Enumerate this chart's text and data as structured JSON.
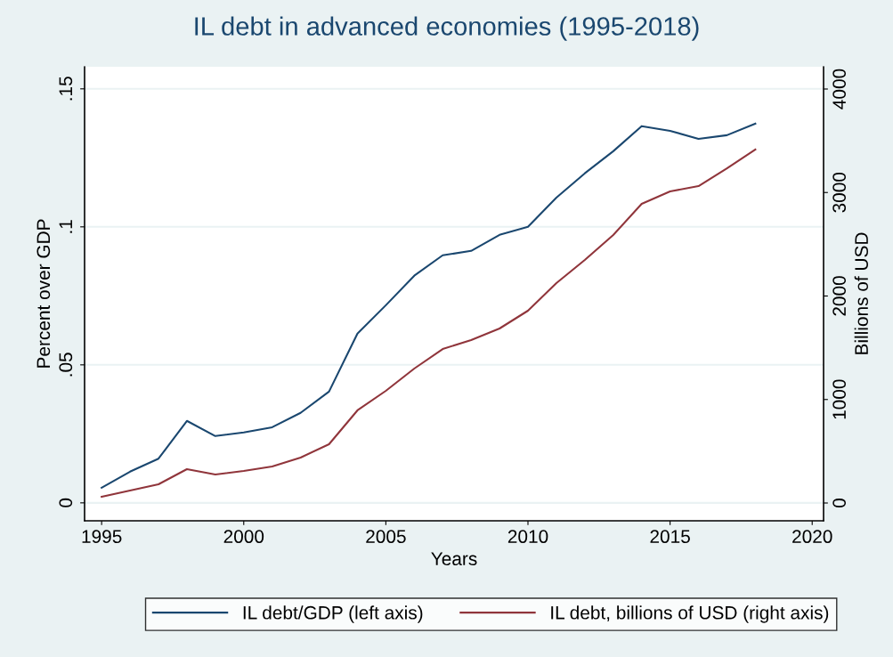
{
  "chart_data": {
    "type": "line",
    "title": "IL debt in advanced economies (1995-2018)",
    "xlabel": "Years",
    "ylabel": "Percent over GDP",
    "y2label": "Billions of USD",
    "x": [
      1995,
      1996,
      1997,
      1998,
      1999,
      2000,
      2001,
      2002,
      2003,
      2004,
      2005,
      2006,
      2007,
      2008,
      2009,
      2010,
      2011,
      2012,
      2013,
      2014,
      2015,
      2016,
      2017,
      2018
    ],
    "series": [
      {
        "name": "IL debt/GDP (left axis)",
        "color": "#1a476f",
        "values": [
          0.0055,
          0.0113,
          0.016,
          0.0297,
          0.0242,
          0.0255,
          0.0274,
          0.0326,
          0.0403,
          0.0613,
          0.0716,
          0.0823,
          0.0897,
          0.0913,
          0.0971,
          0.1,
          0.1106,
          0.1194,
          0.1274,
          0.1365,
          0.1348,
          0.1319,
          0.1332,
          0.1374
        ]
      },
      {
        "name": "IL debt, billions of USD (right axis)",
        "color": "#90353b",
        "axis": "y2",
        "values": [
          60,
          120,
          181,
          327,
          275,
          310,
          353,
          439,
          568,
          895,
          1084,
          1299,
          1488,
          1574,
          1686,
          1858,
          2125,
          2348,
          2589,
          2890,
          3011,
          3062,
          3234,
          3415
        ]
      }
    ],
    "xlim": [
      1994.4,
      2020.4
    ],
    "xticks": [
      1995,
      2000,
      2005,
      2010,
      2015,
      2020
    ],
    "ylim": [
      -0.0065,
      0.158
    ],
    "yticks": [
      {
        "value": 0,
        "label": "0"
      },
      {
        "value": 0.05,
        "label": ".05"
      },
      {
        "value": 0.1,
        "label": ".1"
      },
      {
        "value": 0.15,
        "label": ".15"
      }
    ],
    "y2lim": [
      -172,
      4215
    ],
    "y2ticks": [
      0,
      1000,
      2000,
      3000,
      4000
    ],
    "grid": "y",
    "legend": "bottom",
    "marker": "none",
    "line_style": "solid"
  }
}
